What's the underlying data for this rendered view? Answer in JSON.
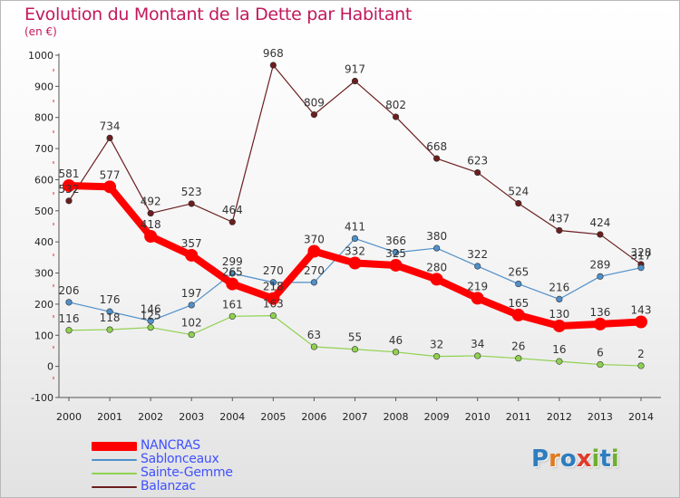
{
  "title": "Evolution du Montant de la Dette par Habitant",
  "subtitle": "(en €)",
  "logo_text": "Proxiti",
  "chart_data": {
    "type": "line",
    "title": "Evolution du Montant de la Dette par Habitant",
    "subtitle": "(en €)",
    "x": [
      "2000",
      "2001",
      "2002",
      "2003",
      "2004",
      "2005",
      "2006",
      "2007",
      "2008",
      "2009",
      "2010",
      "2011",
      "2012",
      "2013",
      "2014"
    ],
    "y_ticks": [
      "-100",
      "0",
      "100",
      "200",
      "300",
      "400",
      "500",
      "600",
      "700",
      "800",
      "900",
      "1000"
    ],
    "ylim": [
      -100,
      1000
    ],
    "grid": false,
    "legend_position": "bottom-left",
    "series": [
      {
        "name": "NANCRAS",
        "color": "#ff0000",
        "values": [
          581,
          577,
          418,
          357,
          265,
          218,
          370,
          332,
          325,
          280,
          219,
          165,
          130,
          136,
          143
        ]
      },
      {
        "name": "Sablonceaux",
        "color": "#4f8fc9",
        "values": [
          206,
          176,
          146,
          197,
          299,
          270,
          270,
          411,
          366,
          380,
          322,
          265,
          216,
          289,
          317
        ]
      },
      {
        "name": "Sainte-Gemme",
        "color": "#8fd14f",
        "values": [
          116,
          118,
          125,
          102,
          161,
          163,
          63,
          55,
          46,
          32,
          34,
          26,
          16,
          6,
          2
        ]
      },
      {
        "name": "Balanzac",
        "color": "#6b1e1e",
        "values": [
          532,
          734,
          492,
          523,
          464,
          968,
          809,
          917,
          802,
          668,
          623,
          524,
          437,
          424,
          328
        ]
      }
    ]
  }
}
